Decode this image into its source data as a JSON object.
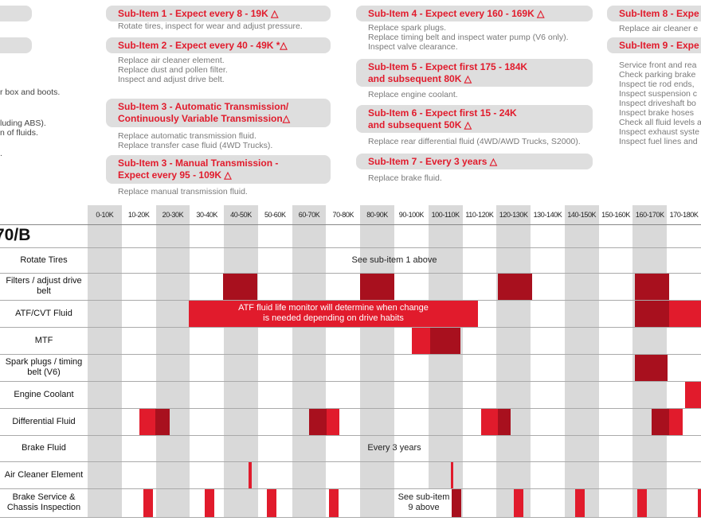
{
  "left_fragments": [
    "r box and boots.",
    "luding ABS).",
    "n of fluids.",
    "."
  ],
  "sub_items": [
    {
      "title": [
        "Sub-Item 1 - Expect every 8 - 19K △"
      ],
      "desc": [
        "Rotate tires, inspect for wear and adjust pressure."
      ]
    },
    {
      "title": [
        "Sub-Item 2 - Expect every 40 - 49K *△"
      ],
      "desc": [
        "Replace air cleaner element.",
        "Replace dust and pollen filter.",
        "Inspect and adjust drive belt."
      ]
    },
    {
      "title": [
        "Sub-Item 3 - Automatic Transmission/",
        "Continuously Variable Transmission△"
      ],
      "desc": [
        "Replace automatic transmission fluid.",
        "Replace transfer case fluid (4WD Trucks)."
      ]
    },
    {
      "title": [
        "Sub-Item 3 - Manual Transmission -",
        "Expect every 95 - 109K △"
      ],
      "desc": [
        "Replace manual transmission fluid."
      ]
    },
    {
      "title": [
        "Sub-Item 4 - Expect every 160 - 169K △"
      ],
      "desc": [
        "Replace spark plugs.",
        "Replace timing belt and inspect water pump (V6 only).",
        "Inspect valve clearance."
      ]
    },
    {
      "title": [
        "Sub-Item 5 - Expect first 175 - 184K",
        "and subsequent 80K △"
      ],
      "desc": [
        "Replace engine coolant."
      ]
    },
    {
      "title": [
        "Sub-Item 6 - Expect first 15 - 24K",
        "and subsequent 50K △"
      ],
      "desc": [
        "Replace rear differential fluid (4WD/AWD Trucks, S2000)."
      ]
    },
    {
      "title": [
        "Sub-Item 7 - Every 3 years △"
      ],
      "desc": [
        "Replace brake fluid."
      ]
    },
    {
      "title": [
        "Sub-Item 8 - Expe"
      ],
      "desc": [
        "Replace air cleaner e"
      ]
    },
    {
      "title": [
        "Sub-Item 9 - Expe"
      ],
      "desc": [
        "Service front and rea",
        "Check parking brake",
        "Inspect tie rod ends,",
        "Inspect suspension c",
        "Inspect driveshaft bo",
        "Inspect brake hoses",
        "Check all fluid levels a",
        "Inspect exhaust syste",
        "Inspect fuel lines and"
      ]
    }
  ],
  "table": {
    "columns": [
      "0-10K",
      "10-20K",
      "20-30K",
      "30-40K",
      "40-50K",
      "50-60K",
      "60-70K",
      "70-80K",
      "80-90K",
      "90-100K",
      "100-110K",
      "110-120K",
      "120-130K",
      "130-140K",
      "140-150K",
      "150-160K",
      "160-170K",
      "170-180K"
    ],
    "model": "70/B",
    "rows": [
      {
        "label": "Rotate Tires",
        "note": [
          "See sub-item 1 above"
        ]
      },
      {
        "label": "Filters / adjust drive belt"
      },
      {
        "label": "ATF/CVT Fluid",
        "note": [
          "ATF fluid life monitor will determine when change",
          "is needed depending on drive habits"
        ]
      },
      {
        "label": "MTF"
      },
      {
        "label": "Spark plugs / timing belt (V6)"
      },
      {
        "label": "Engine Coolant"
      },
      {
        "label": "Differential Fluid"
      },
      {
        "label": "Brake Fluid",
        "note": [
          "Every 3 years"
        ]
      },
      {
        "label": "Air Cleaner Element"
      },
      {
        "label": "Brake Service & Chassis Inspection",
        "note": [
          "See sub-item",
          "9 above"
        ]
      }
    ]
  }
}
